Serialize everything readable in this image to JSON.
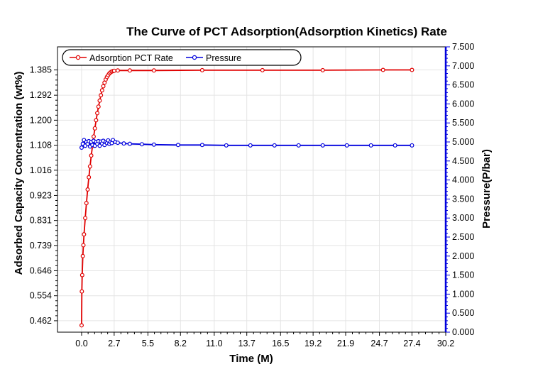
{
  "chart_data": {
    "type": "line",
    "title": "The Curve of PCT Adsorption(Adsorption Kinetics) Rate",
    "xlabel": "Time (M)",
    "ylabel": "Adsorbed Capacity Concentration (wt%)",
    "y2label": "Pressure(P/bar)",
    "xlim": [
      -2.0,
      30.2
    ],
    "ylim": [
      0.42,
      1.47
    ],
    "y2lim": [
      0.0,
      7.5
    ],
    "x_ticks": [
      "0.0",
      "2.7",
      "5.5",
      "8.2",
      "11.0",
      "13.7",
      "16.5",
      "19.2",
      "21.9",
      "24.7",
      "27.4",
      "30.2"
    ],
    "x_tick_values": [
      0.0,
      2.7,
      5.5,
      8.2,
      11.0,
      13.7,
      16.5,
      19.2,
      21.9,
      24.7,
      27.4,
      30.2
    ],
    "y_ticks": [
      "0.462",
      "0.554",
      "0.646",
      "0.739",
      "0.831",
      "0.923",
      "1.016",
      "1.108",
      "1.200",
      "1.292",
      "1.385"
    ],
    "y_tick_values": [
      0.462,
      0.554,
      0.646,
      0.739,
      0.831,
      0.923,
      1.016,
      1.108,
      1.2,
      1.292,
      1.385
    ],
    "y2_ticks": [
      "0.000",
      "0.500",
      "1.000",
      "1.500",
      "2.000",
      "2.500",
      "3.000",
      "3.500",
      "4.000",
      "4.500",
      "5.000",
      "5.500",
      "6.000",
      "6.500",
      "7.000",
      "7.500"
    ],
    "y2_tick_values": [
      0.0,
      0.5,
      1.0,
      1.5,
      2.0,
      2.5,
      3.0,
      3.5,
      4.0,
      4.5,
      5.0,
      5.5,
      6.0,
      6.5,
      7.0,
      7.5
    ],
    "grid": true,
    "legend_position": "top-left",
    "series": [
      {
        "name": "Adsorption PCT Rate",
        "axis": "left",
        "color": "#e00000",
        "x": [
          0.0,
          0.02,
          0.05,
          0.1,
          0.15,
          0.2,
          0.3,
          0.4,
          0.5,
          0.6,
          0.7,
          0.8,
          0.9,
          1.0,
          1.1,
          1.2,
          1.3,
          1.4,
          1.5,
          1.6,
          1.7,
          1.8,
          1.9,
          2.0,
          2.1,
          2.2,
          2.3,
          2.4,
          2.5,
          2.6,
          2.7,
          3.0,
          4.0,
          6.0,
          10.0,
          15.0,
          20.0,
          25.0,
          27.4
        ],
        "y": [
          0.445,
          0.57,
          0.63,
          0.7,
          0.74,
          0.78,
          0.84,
          0.895,
          0.945,
          0.99,
          1.03,
          1.07,
          1.105,
          1.14,
          1.17,
          1.2,
          1.226,
          1.25,
          1.272,
          1.292,
          1.31,
          1.325,
          1.338,
          1.35,
          1.359,
          1.366,
          1.372,
          1.376,
          1.379,
          1.381,
          1.382,
          1.383,
          1.383,
          1.383,
          1.384,
          1.384,
          1.384,
          1.385,
          1.385
        ]
      },
      {
        "name": "Pressure",
        "axis": "right",
        "color": "#0000dd",
        "x": [
          0.0,
          0.1,
          0.2,
          0.3,
          0.4,
          0.5,
          0.6,
          0.7,
          0.8,
          0.9,
          1.0,
          1.1,
          1.2,
          1.3,
          1.4,
          1.5,
          1.6,
          1.7,
          1.8,
          1.9,
          2.0,
          2.1,
          2.2,
          2.3,
          2.4,
          2.5,
          2.6,
          2.8,
          3.0,
          3.5,
          4.0,
          5.0,
          6.0,
          8.0,
          10.0,
          12.0,
          14.0,
          16.0,
          18.0,
          20.0,
          22.0,
          24.0,
          26.0,
          27.4
        ],
        "y": [
          4.85,
          4.95,
          5.05,
          4.9,
          5.0,
          4.95,
          5.02,
          4.88,
          5.0,
          4.92,
          5.03,
          4.9,
          5.0,
          4.95,
          5.02,
          4.9,
          5.01,
          4.96,
          5.03,
          4.92,
          5.0,
          4.97,
          5.04,
          4.95,
          5.0,
          4.97,
          5.05,
          5.0,
          4.98,
          4.96,
          4.95,
          4.94,
          4.93,
          4.92,
          4.92,
          4.91,
          4.91,
          4.91,
          4.91,
          4.91,
          4.91,
          4.91,
          4.91,
          4.91
        ]
      }
    ]
  }
}
